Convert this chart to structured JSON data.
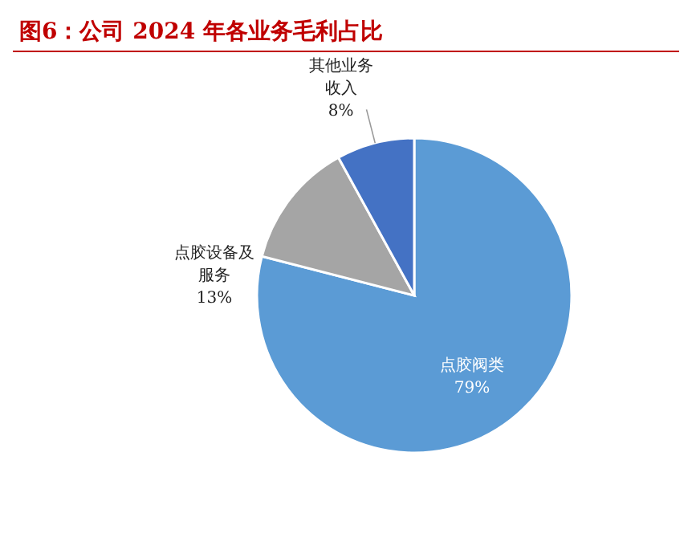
{
  "chart_data": {
    "type": "pie",
    "title": "图6：公司 2024 年各业务毛利占比",
    "categories": [
      "点胶阀类",
      "点胶设备及服务",
      "其他业务收入"
    ],
    "values": [
      79,
      13,
      8
    ],
    "colors": [
      "#5b9bd5",
      "#a5a5a5",
      "#4472c4"
    ],
    "value_labels": [
      "79%",
      "13%",
      "8%"
    ]
  }
}
